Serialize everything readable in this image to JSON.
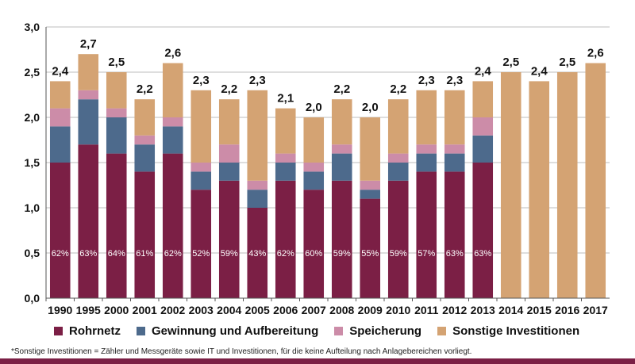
{
  "chart_data": {
    "type": "bar",
    "stacked": true,
    "categories": [
      "1990",
      "1995",
      "2000",
      "2001",
      "2002",
      "2003",
      "2004",
      "2005",
      "2006",
      "2007",
      "2008",
      "2009",
      "2010",
      "2011",
      "2012",
      "2013",
      "2014",
      "2015",
      "2016",
      "2017"
    ],
    "series": [
      {
        "name": "Rohrnetz",
        "color": "#7b1f45",
        "values": [
          1.5,
          1.7,
          1.6,
          1.4,
          1.6,
          1.2,
          1.3,
          1.0,
          1.3,
          1.2,
          1.3,
          1.1,
          1.3,
          1.4,
          1.4,
          1.5,
          0,
          0,
          0,
          0
        ]
      },
      {
        "name": "Gewinnung und Aufbereitung",
        "color": "#4d6a8c",
        "values": [
          0.4,
          0.5,
          0.4,
          0.3,
          0.3,
          0.2,
          0.2,
          0.2,
          0.2,
          0.2,
          0.3,
          0.1,
          0.2,
          0.2,
          0.2,
          0.3,
          0,
          0,
          0,
          0
        ]
      },
      {
        "name": "Speicherung",
        "color": "#cc8ca8",
        "values": [
          0.2,
          0.1,
          0.1,
          0.1,
          0.1,
          0.1,
          0.2,
          0.1,
          0.1,
          0.1,
          0.1,
          0.1,
          0.1,
          0.1,
          0.1,
          0.2,
          0,
          0,
          0,
          0
        ]
      },
      {
        "name": "Sonstige Investitionen",
        "color": "#d4a373",
        "values": [
          0.3,
          0.4,
          0.4,
          0.4,
          0.6,
          0.8,
          0.5,
          1.0,
          0.5,
          0.5,
          0.5,
          0.7,
          0.6,
          0.6,
          0.6,
          0.4,
          2.5,
          2.4,
          2.5,
          2.6
        ]
      }
    ],
    "totals": [
      2.4,
      2.7,
      2.5,
      2.2,
      2.6,
      2.3,
      2.2,
      2.3,
      2.1,
      2.0,
      2.2,
      2.0,
      2.2,
      2.3,
      2.3,
      2.4,
      2.5,
      2.4,
      2.5,
      2.6
    ],
    "total_labels": [
      "2,4",
      "2,7",
      "2,5",
      "2,2",
      "2,6",
      "2,3",
      "2,2",
      "2,3",
      "2,1",
      "2,0",
      "2,2",
      "2,0",
      "2,2",
      "2,3",
      "2,3",
      "2,4",
      "2,5",
      "2,4",
      "2,5",
      "2,6"
    ],
    "share_labels": [
      "62%",
      "63%",
      "64%",
      "61%",
      "62%",
      "52%",
      "59%",
      "43%",
      "62%",
      "60%",
      "59%",
      "55%",
      "59%",
      "57%",
      "63%",
      "63%",
      "",
      "",
      "",
      ""
    ],
    "share_label_value": 0.5,
    "ylim": [
      0,
      3.0
    ],
    "yticks": [
      0,
      0.5,
      1.0,
      1.5,
      2.0,
      2.5,
      3.0
    ],
    "ytick_labels": [
      "0,0",
      "0,5",
      "1,0",
      "1,5",
      "2,0",
      "2,5",
      "3,0"
    ],
    "grid": true,
    "legend_position": "bottom",
    "xlabel": "",
    "ylabel": "",
    "title": ""
  },
  "footnote": "*Sonstige Investitionen = Zähler und Messgeräte sowie IT und Investitionen, für die keine Aufteilung nach Anlagebereichen vorliegt."
}
